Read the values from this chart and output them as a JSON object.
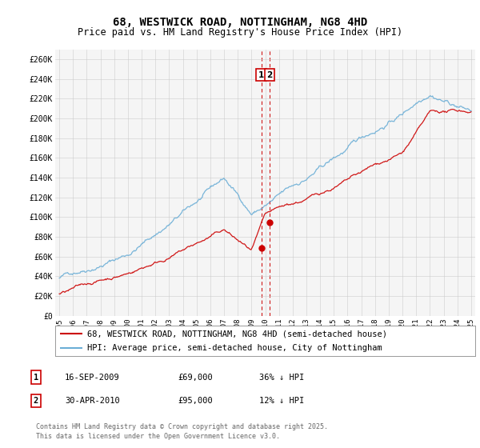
{
  "title": "68, WESTWICK ROAD, NOTTINGHAM, NG8 4HD",
  "subtitle": "Price paid vs. HM Land Registry's House Price Index (HPI)",
  "background_color": "#ffffff",
  "grid_color": "#cccccc",
  "plot_bg_color": "#f5f5f5",
  "ylim": [
    0,
    270000
  ],
  "yticks": [
    0,
    20000,
    40000,
    60000,
    80000,
    100000,
    120000,
    140000,
    160000,
    180000,
    200000,
    220000,
    240000,
    260000
  ],
  "ytick_labels": [
    "£0",
    "£20K",
    "£40K",
    "£60K",
    "£80K",
    "£100K",
    "£120K",
    "£140K",
    "£160K",
    "£180K",
    "£200K",
    "£220K",
    "£240K",
    "£260K"
  ],
  "xmin_year": 1995,
  "xmax_year": 2025,
  "xtick_years": [
    1995,
    1996,
    1997,
    1998,
    1999,
    2000,
    2001,
    2002,
    2003,
    2004,
    2005,
    2006,
    2007,
    2008,
    2009,
    2010,
    2011,
    2012,
    2013,
    2014,
    2015,
    2016,
    2017,
    2018,
    2019,
    2020,
    2021,
    2022,
    2023,
    2024,
    2025
  ],
  "xtick_labels": [
    "1995",
    "1996",
    "1997",
    "1998",
    "1999",
    "2000",
    "2001",
    "2002",
    "2003",
    "2004",
    "2005",
    "2006",
    "2007",
    "2008",
    "2009",
    "2010",
    "2011",
    "2012",
    "2013",
    "2014",
    "2015",
    "2016",
    "2017",
    "2018",
    "2019",
    "2020",
    "2021",
    "2022",
    "2023",
    "2024",
    "2025"
  ],
  "hpi_color": "#6baed6",
  "price_color": "#cc0000",
  "vline_color": "#cc0000",
  "marker_box_color": "#cc0000",
  "sale1_year": 2009.71,
  "sale1_price": 69000,
  "sale2_year": 2010.33,
  "sale2_price": 95000,
  "sale1_label": "1",
  "sale2_label": "2",
  "legend_line1": "68, WESTWICK ROAD, NOTTINGHAM, NG8 4HD (semi-detached house)",
  "legend_line2": "HPI: Average price, semi-detached house, City of Nottingham",
  "table_row1": [
    "1",
    "16-SEP-2009",
    "£69,000",
    "36% ↓ HPI"
  ],
  "table_row2": [
    "2",
    "30-APR-2010",
    "£95,000",
    "12% ↓ HPI"
  ],
  "footnote": "Contains HM Land Registry data © Crown copyright and database right 2025.\nThis data is licensed under the Open Government Licence v3.0.",
  "title_fontsize": 10,
  "subtitle_fontsize": 8.5,
  "tick_fontsize": 7,
  "legend_fontsize": 7.5
}
